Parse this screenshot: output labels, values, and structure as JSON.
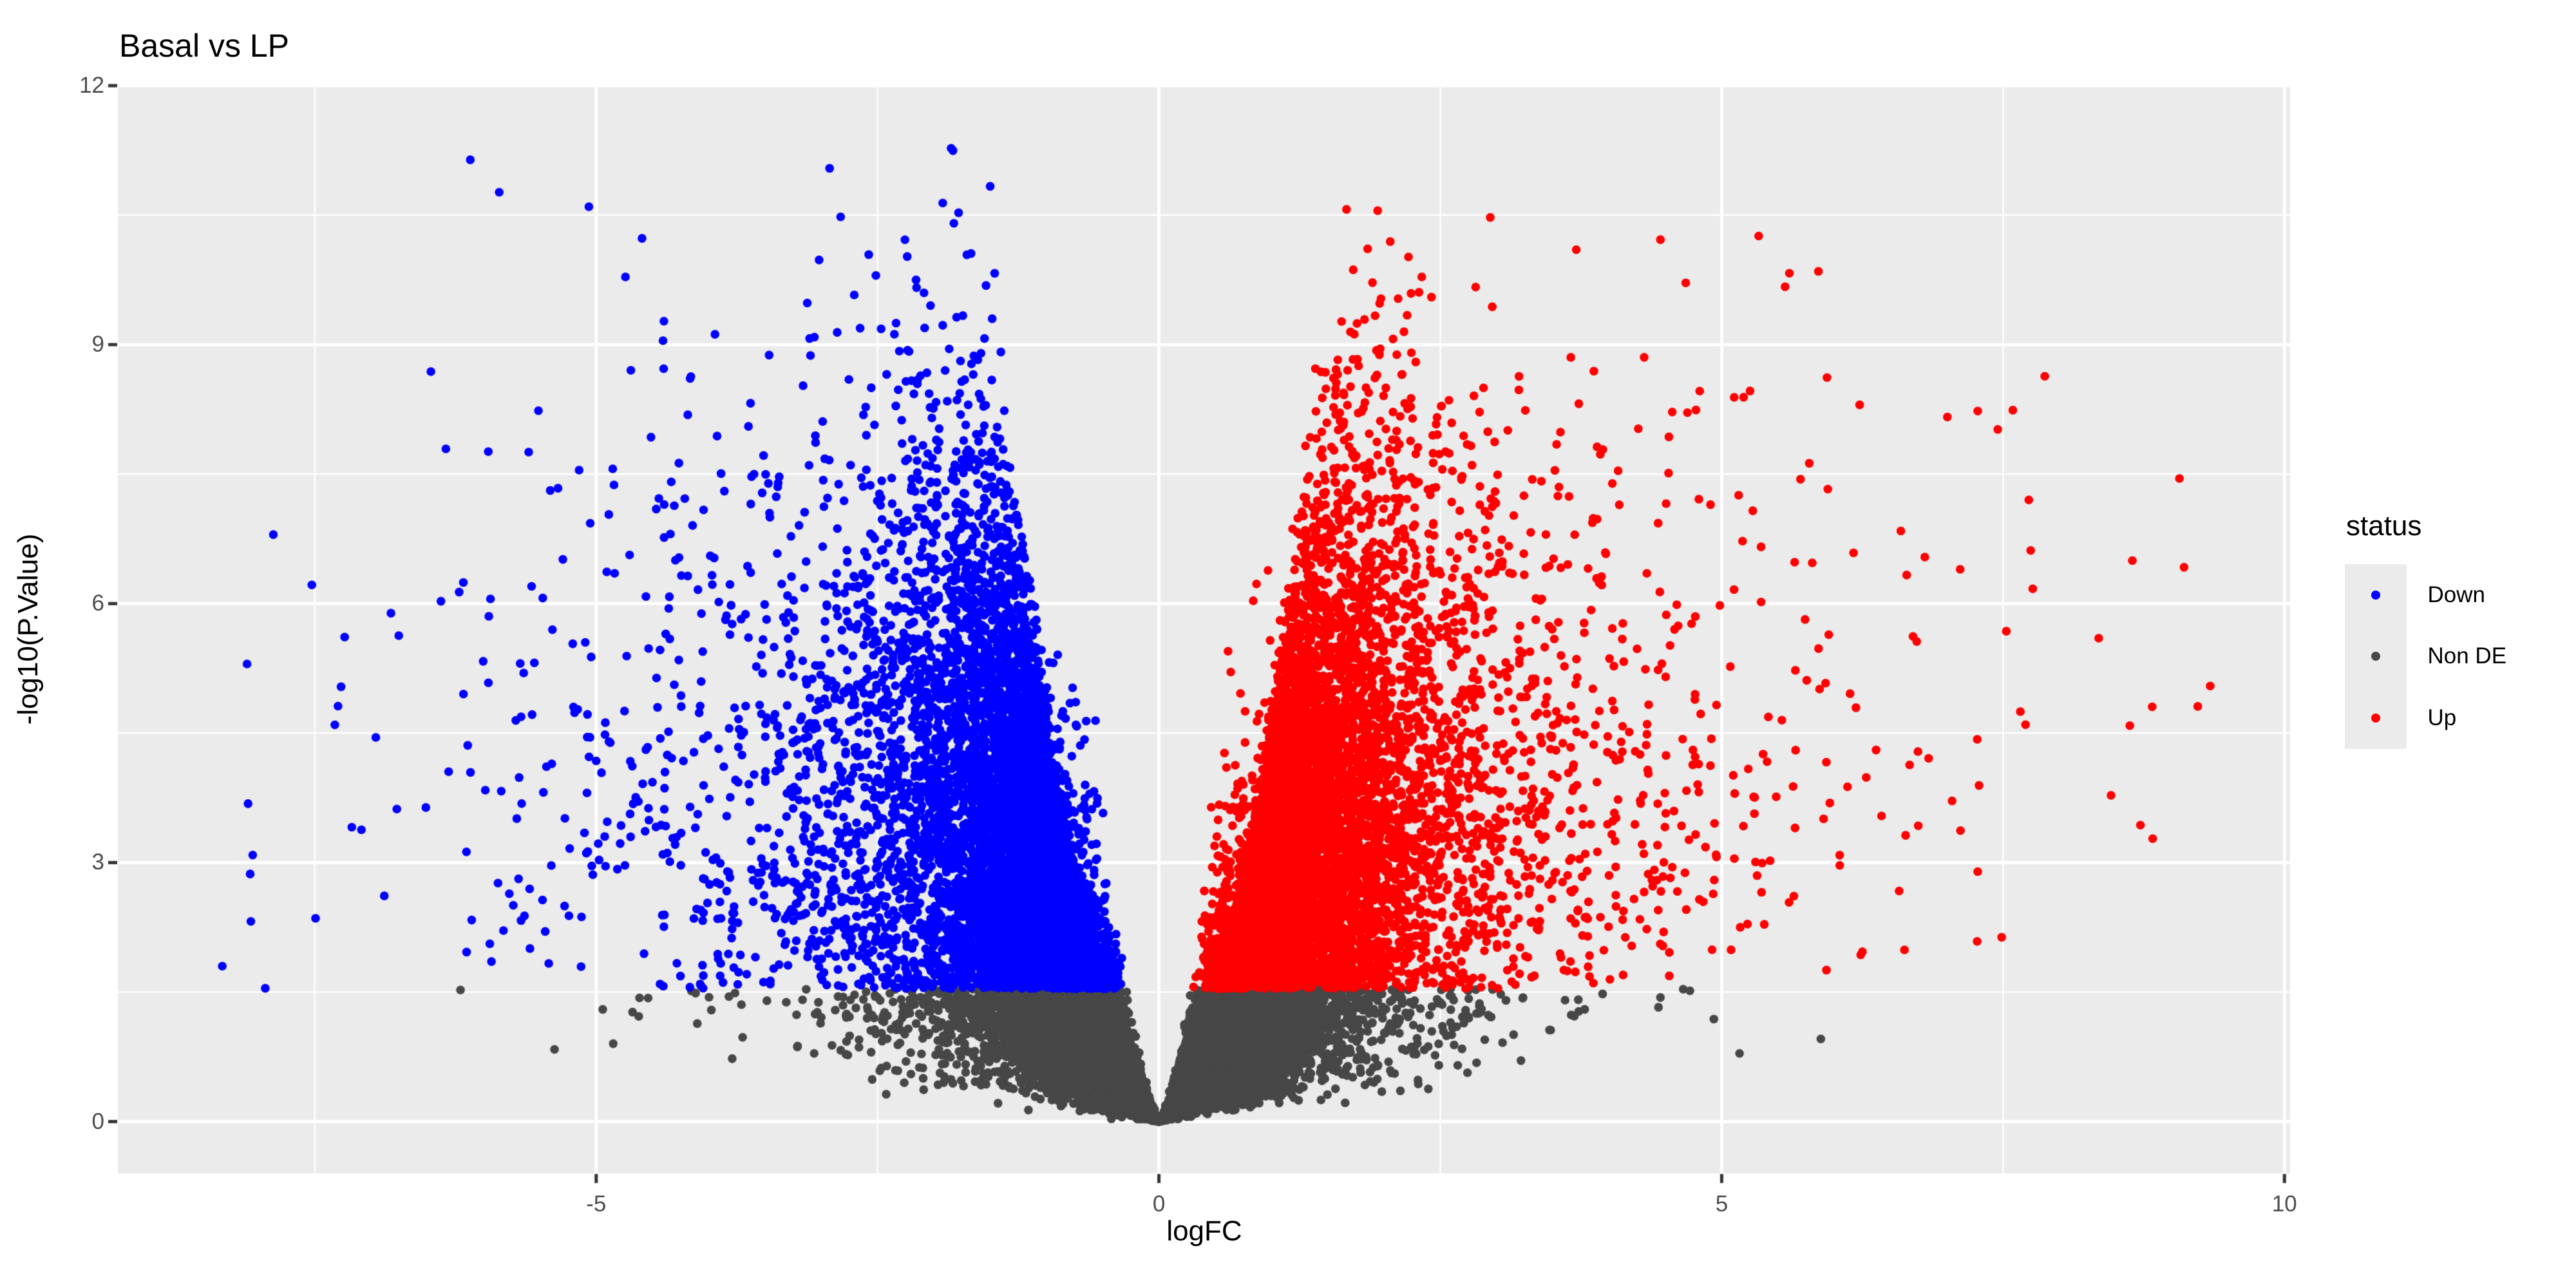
{
  "title": "Basal vs LP",
  "axes": {
    "x": {
      "title": "logFC",
      "tick_labels": [
        "-5",
        "0",
        "5",
        "10"
      ]
    },
    "y": {
      "title": "-log10(P.Value)",
      "tick_labels": [
        "0",
        "3",
        "6",
        "9",
        "12"
      ]
    }
  },
  "legend": {
    "title": "status",
    "items": [
      {
        "label": "Down",
        "color": "#0000FF"
      },
      {
        "label": "Non DE",
        "color": "#474747"
      },
      {
        "label": "Up",
        "color": "#FF0000"
      }
    ]
  },
  "style": {
    "panel_bg": "#EBEBEB",
    "grid_color": "#FFFFFF",
    "major_grid_width": 5,
    "minor_grid_width": 2.5,
    "tick_mark_color": "#333333",
    "tick_mark_length": 14,
    "tick_mark_width": 5,
    "tick_label_color": "#4D4D4D",
    "text_color": "#000000",
    "point_radius": 6.8
  },
  "chart_data": {
    "type": "scatter",
    "title": "Basal vs LP",
    "xlabel": "logFC",
    "ylabel": "-log10(P.Value)",
    "xlim": [
      -9.25,
      10.05
    ],
    "ylim": [
      -0.6,
      12.0
    ],
    "x_ticks": [
      -5,
      0,
      5,
      10
    ],
    "x_minor_ticks": [
      -7.5,
      -2.5,
      2.5,
      7.5
    ],
    "y_ticks": [
      0,
      3,
      6,
      9,
      12
    ],
    "y_minor_ticks": [
      1.5,
      4.5,
      7.5,
      10.5
    ],
    "grid": "major+minor",
    "legend_position": "right",
    "significance_threshold_neglog10p": 1.54,
    "observed_extremes": {
      "x_min": -8.3,
      "x_max": 9.3,
      "y_max": 11.46,
      "down_apex": [
        -4.2,
        11.46
      ],
      "up_apex": [
        4.9,
        10.6
      ]
    },
    "series": [
      {
        "name": "Down",
        "color": "#0000FF",
        "description": "~8300 significantly down-regulated genes: logFC < 0 and -log10(P.Value) > 1.54; densest for logFC -0.5..-3 at -log10(P) 1.5..6, fanning out to logFC -8.3, topmost point near (-4.2, 11.46)"
      },
      {
        "name": "Non DE",
        "color": "#474747",
        "description": "~13400 non-significant genes: -log10(P.Value) < 1.54; solid dark funnel tapering to (0,0) with empty V notch at logFC 0, sparse outliers to logFC ±6"
      },
      {
        "name": "Up",
        "color": "#FF0000",
        "description": "~8300 significantly up-regulated genes: logFC > 0 and -log10(P.Value) > 1.54; densest for logFC 0.5..3 at -log10(P) 1.5..6, fanning out to logFC 9.3, topmost point near (4.9, 10.6)"
      }
    ],
    "generator": {
      "seed": 11,
      "n_points": 30000,
      "y_cap": 11.47,
      "blue_only_above_y": 10.7,
      "x_min": -8.35,
      "x_max": 9.35,
      "model": "y = -log10(P); t = qnorm(1 - 10^(-y)/2); logFC = sign * t * se with lognormal se above a floor; status = Down/Up if y > 1.54 (by sign of logFC) else Non DE",
      "components": [
        {
          "weight": 0.55,
          "y_dist": "exponential",
          "y_mean": 1.15,
          "se_floor": 0.1,
          "se_scale": 0.3,
          "se_sigma": 0.72
        },
        {
          "weight": 0.45,
          "y_dist": "shifted_half_normal",
          "y_shift": 1.2,
          "y_sigma": 2.85,
          "se_floor": 0.22,
          "se_scale": 0.13,
          "se_sigma": 1.0
        }
      ]
    }
  }
}
